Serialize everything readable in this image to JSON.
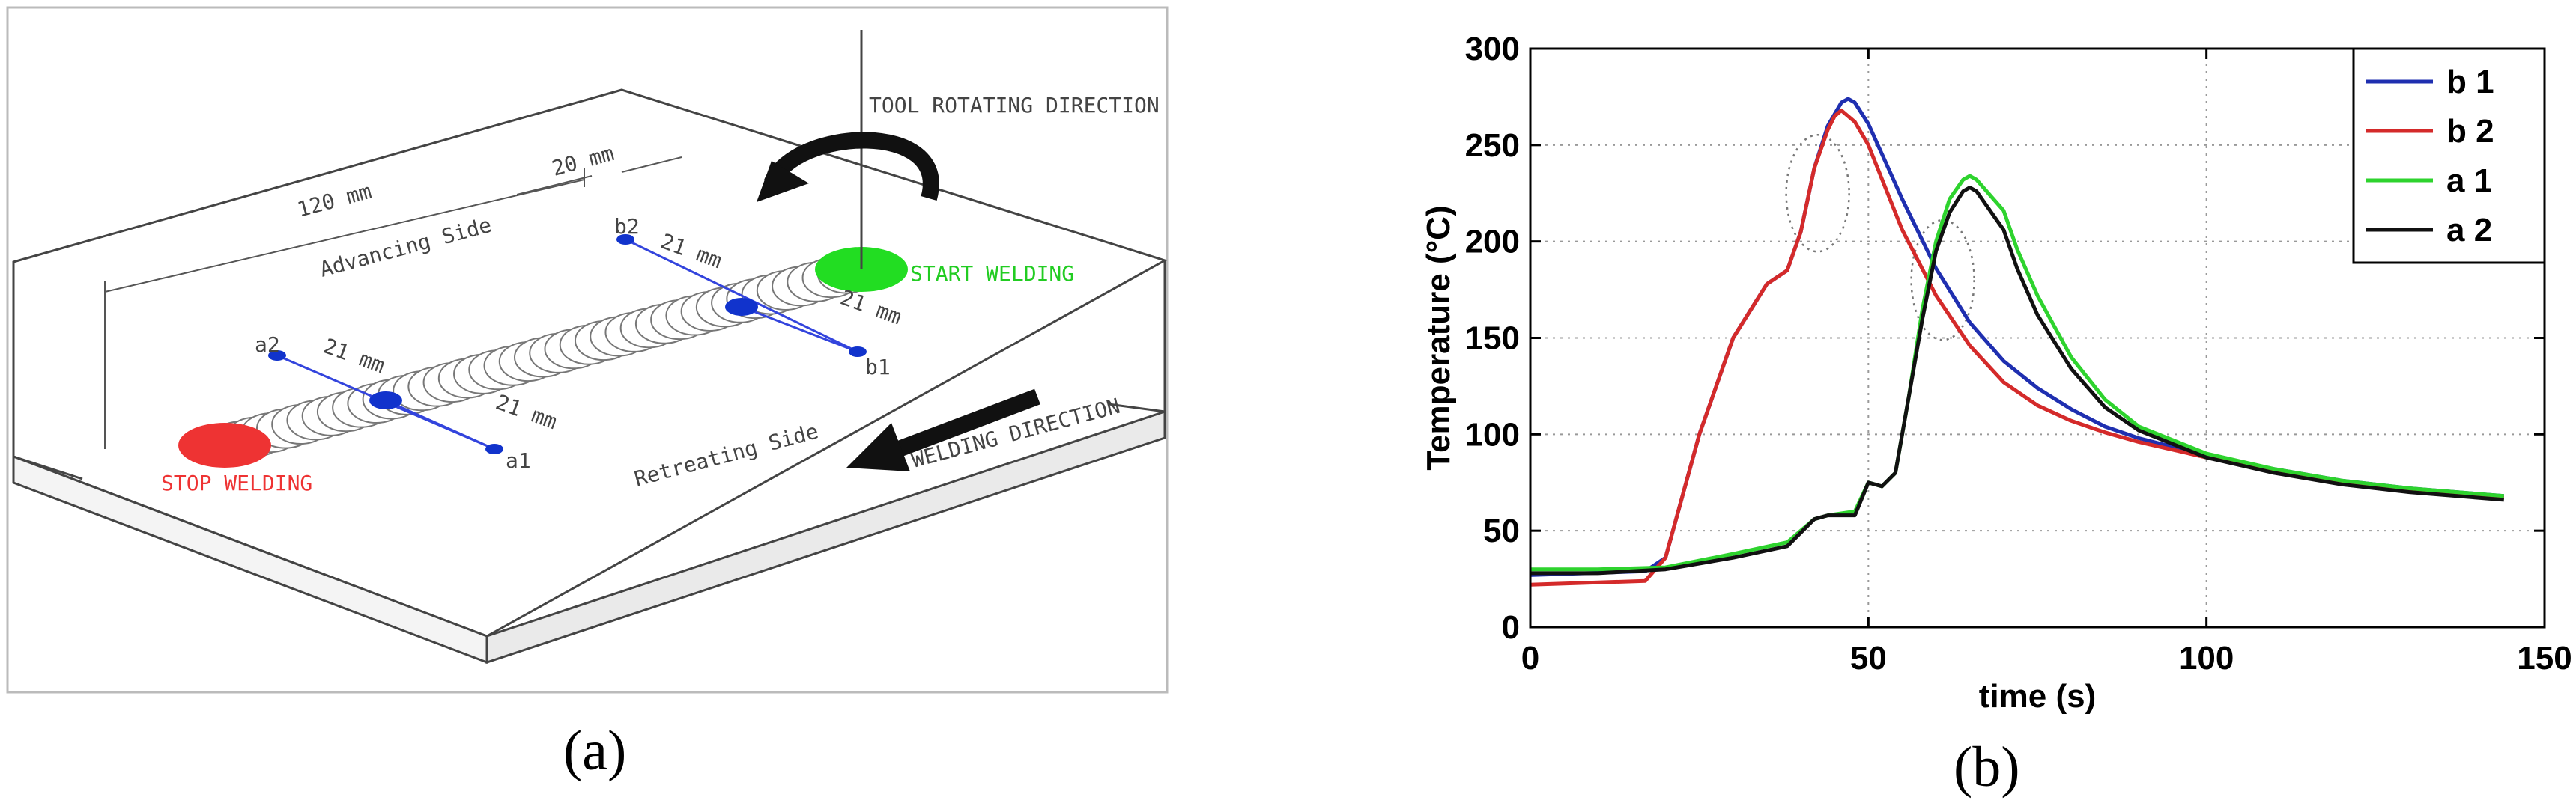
{
  "panel_a": {
    "caption": "(a)",
    "labels": {
      "tool_rotating_direction": "TOOL ROTATING DIRECTION",
      "length_120": "120 mm",
      "length_20": "20 mm",
      "advancing_side": "Advancing Side",
      "retreating_side": "Retreating Side",
      "start_welding": "START WELDING",
      "stop_welding": "STOP WELDING",
      "welding_direction": "WELDING DIRECTION",
      "b2": "b2",
      "b1": "b1",
      "a2": "a2",
      "a1": "a1",
      "dist_b2": "21 mm",
      "dist_b1": "21 mm",
      "dist_a2": "21 mm",
      "dist_a1": "21 mm"
    },
    "colors": {
      "start": "#22dd22",
      "stop": "#ee3333",
      "point": "#1133cc",
      "line": "#3344dd"
    }
  },
  "panel_b": {
    "caption": "(b)"
  },
  "chart_data": {
    "type": "line",
    "title": "",
    "xlabel": "time (s)",
    "ylabel": "Temperature (°C)",
    "xlim": [
      0,
      150
    ],
    "ylim": [
      0,
      300
    ],
    "xticks": [
      0,
      50,
      100,
      150
    ],
    "yticks": [
      0,
      50,
      100,
      150,
      200,
      250,
      300
    ],
    "grid": "dotted horizontal",
    "legend": "top-right",
    "series": [
      {
        "name": "b 1",
        "color": "#1f2fb0",
        "x": [
          0,
          17,
          20,
          25,
          30,
          35,
          38,
          40,
          42,
          44,
          46,
          47,
          48,
          50,
          55,
          60,
          65,
          70,
          75,
          80,
          85,
          90,
          100,
          110,
          120,
          130,
          144
        ],
        "y": [
          27,
          29,
          36,
          100,
          150,
          178,
          185,
          205,
          238,
          260,
          272,
          274,
          272,
          261,
          222,
          186,
          158,
          138,
          124,
          113,
          104,
          98,
          89,
          82,
          76,
          72,
          68
        ]
      },
      {
        "name": "b 2",
        "color": "#d42a2a",
        "x": [
          0,
          17,
          20,
          25,
          30,
          35,
          38,
          40,
          42,
          44,
          45,
          46,
          48,
          50,
          55,
          60,
          65,
          70,
          75,
          80,
          85,
          90,
          100,
          110,
          120,
          130,
          144
        ],
        "y": [
          22,
          24,
          36,
          100,
          150,
          178,
          185,
          205,
          238,
          258,
          265,
          268,
          262,
          250,
          206,
          172,
          146,
          127,
          115,
          107,
          101,
          96,
          88,
          81,
          75,
          71,
          67
        ]
      },
      {
        "name": "a 1",
        "color": "#2ed32e",
        "x": [
          0,
          10,
          20,
          30,
          38,
          42,
          44,
          48,
          50,
          52,
          54,
          56,
          58,
          60,
          62,
          64,
          65,
          66,
          68,
          70,
          72,
          75,
          80,
          85,
          90,
          100,
          110,
          120,
          130,
          144
        ],
        "y": [
          30,
          30,
          31,
          38,
          44,
          56,
          58,
          60,
          75,
          73,
          80,
          120,
          165,
          200,
          222,
          232,
          234,
          232,
          224,
          216,
          196,
          172,
          140,
          118,
          104,
          90,
          82,
          76,
          72,
          68
        ]
      },
      {
        "name": "a 2",
        "color": "#111111",
        "x": [
          0,
          10,
          20,
          30,
          38,
          42,
          44,
          48,
          50,
          52,
          54,
          56,
          58,
          60,
          62,
          64,
          65,
          66,
          68,
          70,
          72,
          75,
          80,
          85,
          90,
          100,
          110,
          120,
          130,
          144
        ],
        "y": [
          28,
          28,
          30,
          36,
          42,
          56,
          58,
          58,
          75,
          73,
          80,
          120,
          160,
          195,
          215,
          226,
          228,
          226,
          216,
          206,
          186,
          162,
          134,
          114,
          102,
          88,
          80,
          74,
          70,
          66
        ]
      }
    ]
  }
}
